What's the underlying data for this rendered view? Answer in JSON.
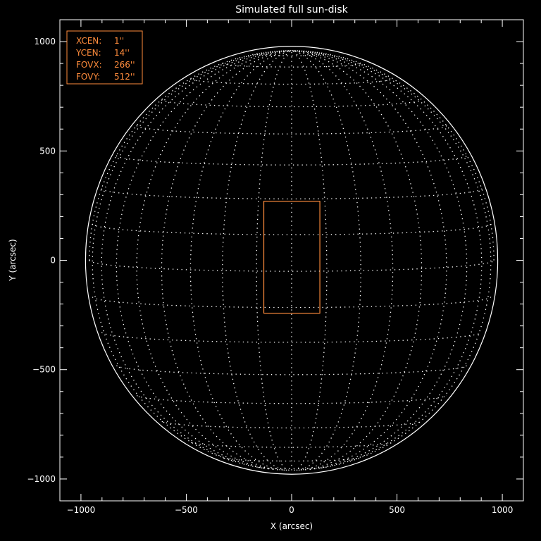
{
  "chart_data": {
    "type": "scatter",
    "title": "Simulated full sun-disk",
    "xlabel": "X (arcsec)",
    "ylabel": "Y (arcsec)",
    "xlim": [
      -1100,
      1100
    ],
    "ylim": [
      -1100,
      1100
    ],
    "xticks": [
      -1000,
      -500,
      0,
      500,
      1000
    ],
    "yticks": [
      -1000,
      -500,
      0,
      500,
      1000
    ],
    "xtick_labels": [
      "−1000",
      "−500",
      "0",
      "500",
      "1000"
    ],
    "ytick_labels": [
      "−1000",
      "−500",
      "0",
      "500",
      "1000"
    ],
    "minor_tick_step": 100,
    "solar_radius_arcsec": 960,
    "grid_spacing_deg": 10,
    "b0_deg": 3,
    "fov_box": {
      "xcen": 1,
      "ycen": 14,
      "fovx": 266,
      "fovy": 512
    },
    "legend": {
      "placement": "top-left",
      "rows": [
        {
          "label": "XCEN:",
          "value": "1''"
        },
        {
          "label": "YCEN:",
          "value": "14''"
        },
        {
          "label": "FOVX:",
          "value": "266''"
        },
        {
          "label": "FOVY:",
          "value": "512''"
        }
      ]
    },
    "colors": {
      "background": "#000000",
      "axes": "#ffffff",
      "grid": "#ffffff",
      "fov": "#ff8c3c"
    }
  }
}
